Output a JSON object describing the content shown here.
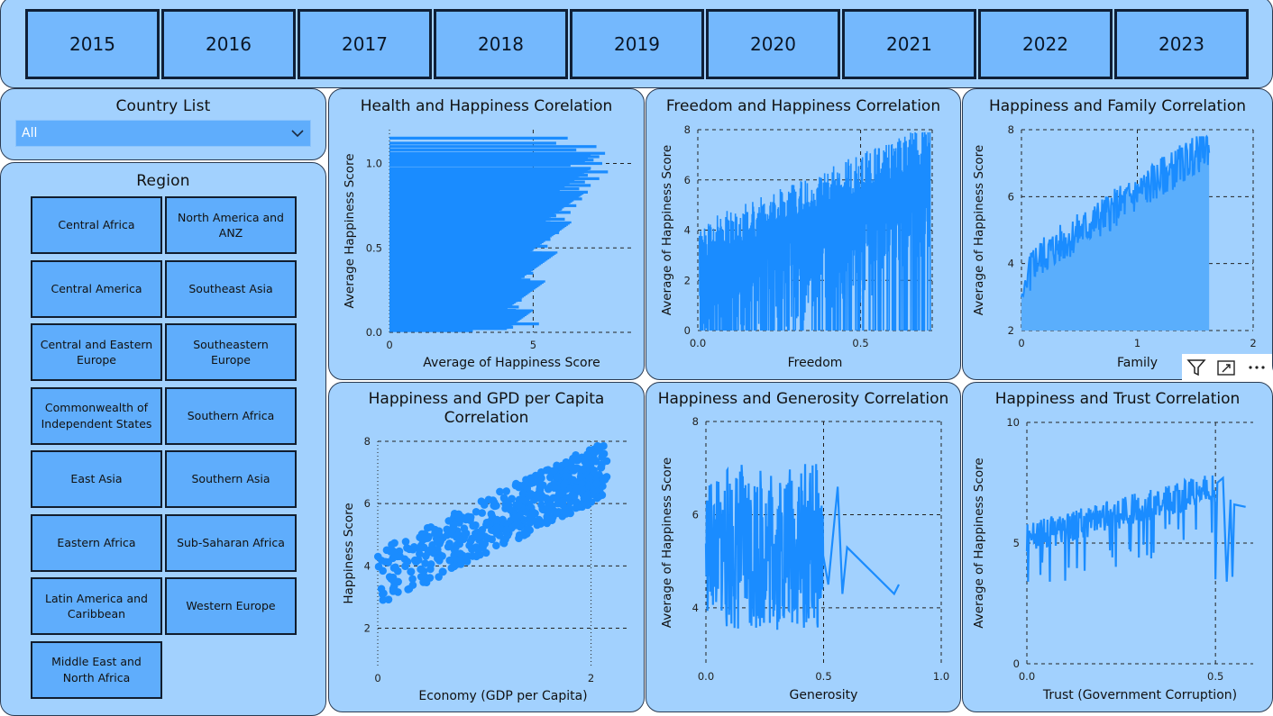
{
  "years": [
    "2015",
    "2016",
    "2017",
    "2018",
    "2019",
    "2020",
    "2021",
    "2022",
    "2023"
  ],
  "country_list": {
    "title": "Country List",
    "selected": "All"
  },
  "region": {
    "title": "Region",
    "left": [
      "Central Africa",
      "Central America",
      "Central and Eastern Europe",
      "Commonwealth of Independent States",
      "East Asia",
      "Eastern Africa",
      "Latin America and Caribbean",
      "Middle East and North Africa"
    ],
    "right": [
      "North America and ANZ",
      "Southeast Asia",
      "Southeastern Europe",
      "Southern Africa",
      "Southern Asia",
      "Sub-Saharan Africa",
      "Western Europe"
    ]
  },
  "colors": {
    "series": "#1a8cff",
    "area": "#5aaefc",
    "panel": "#a2d1fe",
    "button": "#74b8fd"
  },
  "toolbar_icons": [
    "filter-icon",
    "focus-mode-icon",
    "more-options-icon"
  ],
  "chart_data": [
    {
      "id": "health",
      "type": "bar",
      "orientation": "horizontal",
      "title": "Health and Happiness Corelation",
      "xlabel": "Average of Happiness Score",
      "ylabel": "Average Happiness Score",
      "xlim": [
        0,
        8.5
      ],
      "ylim": [
        0,
        1.2
      ],
      "xticks": [
        "0",
        "5"
      ],
      "xtick_values": [
        0,
        5
      ],
      "yticks": [
        "0.0",
        "0.5",
        "1.0"
      ],
      "ytick_values": [
        0,
        0.5,
        1.0
      ],
      "bars_note": "dense horizontal bars; health value on y, average happiness on x",
      "y_values": [
        1.15,
        1.12,
        1.1,
        1.08,
        1.06,
        1.05,
        1.04,
        1.03,
        1.02,
        1.01,
        1.0,
        0.99,
        0.97,
        0.95,
        0.93,
        0.91,
        0.89,
        0.87,
        0.85,
        0.83,
        0.81,
        0.79,
        0.77,
        0.75,
        0.73,
        0.71,
        0.69,
        0.67,
        0.65,
        0.63,
        0.61,
        0.59,
        0.57,
        0.55,
        0.53,
        0.51,
        0.49,
        0.47,
        0.45,
        0.43,
        0.41,
        0.39,
        0.37,
        0.35,
        0.33,
        0.31,
        0.29,
        0.27,
        0.25,
        0.23,
        0.21,
        0.19,
        0.17,
        0.15,
        0.13,
        0.11,
        0.09,
        0.07,
        0.05,
        0.03,
        0.01
      ],
      "x_values": [
        6.2,
        5.8,
        7.2,
        6.5,
        7.5,
        7.0,
        7.3,
        6.9,
        7.1,
        6.8,
        7.4,
        6.3,
        7.0,
        7.6,
        6.9,
        7.3,
        6.8,
        7.0,
        6.6,
        6.9,
        6.4,
        6.7,
        6.2,
        6.5,
        6.0,
        6.3,
        5.8,
        6.1,
        5.6,
        6.0,
        5.4,
        5.9,
        5.3,
        5.6,
        5.1,
        5.5,
        5.0,
        5.3,
        4.8,
        5.2,
        4.9,
        5.1,
        4.6,
        5.0,
        4.7,
        4.9,
        4.5,
        4.8,
        4.4,
        4.7,
        4.3,
        4.6,
        4.2,
        4.5,
        4.4,
        4.3,
        4.1,
        4.4,
        5.2,
        4.3,
        2.9
      ]
    },
    {
      "id": "freedom",
      "type": "line",
      "title": "Freedom and Happiness Correlation",
      "xlabel": "Freedom",
      "ylabel": "Average of Happiness Score",
      "xlim": [
        0,
        0.72
      ],
      "ylim": [
        0,
        8
      ],
      "xticks": [
        "0.0",
        "0.5"
      ],
      "xtick_values": [
        0,
        0.5
      ],
      "yticks": [
        "0",
        "2",
        "4",
        "6",
        "8"
      ],
      "ytick_values": [
        0,
        2,
        4,
        6,
        8
      ]
    },
    {
      "id": "family",
      "type": "area",
      "title": "Happiness and Family Correlation",
      "xlabel": "Family",
      "ylabel": "Average of Happiness Score",
      "xlim": [
        0,
        2
      ],
      "ylim": [
        2,
        8
      ],
      "xticks": [
        "0",
        "1",
        "2"
      ],
      "xtick_values": [
        0,
        1,
        2
      ],
      "yticks": [
        "2",
        "4",
        "6",
        "8"
      ],
      "ytick_values": [
        2,
        4,
        6,
        8
      ]
    },
    {
      "id": "gdp",
      "type": "scatter",
      "title": "Happiness and GPD per Capita Correlation",
      "xlabel": "Economy (GDP per Capita)",
      "ylabel": "Happiness Score",
      "xlim": [
        0,
        2.35
      ],
      "ylim": [
        0.8,
        8
      ],
      "xticks": [
        "0",
        "2"
      ],
      "xtick_values": [
        0,
        2
      ],
      "yticks": [
        "2",
        "4",
        "6",
        "8"
      ],
      "ytick_values": [
        2,
        4,
        6,
        8
      ]
    },
    {
      "id": "generosity",
      "type": "line",
      "title": "Happiness and Generosity Correlation",
      "xlabel": "Generosity",
      "ylabel": "Average of Happiness Score",
      "xlim": [
        0,
        1.0
      ],
      "ylim": [
        2.8,
        8
      ],
      "xticks": [
        "0.0",
        "0.5",
        "1.0"
      ],
      "xtick_values": [
        0,
        0.5,
        1.0
      ],
      "yticks": [
        "4",
        "6",
        "8"
      ],
      "ytick_values": [
        4,
        6,
        8
      ]
    },
    {
      "id": "trust",
      "type": "line",
      "title": "Happiness and Trust Correlation",
      "xlabel": "Trust (Government Corruption)",
      "ylabel": "Average of Happiness Score",
      "xlim": [
        0,
        0.6
      ],
      "ylim": [
        0,
        10
      ],
      "xticks": [
        "0.0",
        "0.5"
      ],
      "xtick_values": [
        0,
        0.5
      ],
      "yticks": [
        "0",
        "5",
        "10"
      ],
      "ytick_values": [
        0,
        5,
        10
      ]
    }
  ]
}
